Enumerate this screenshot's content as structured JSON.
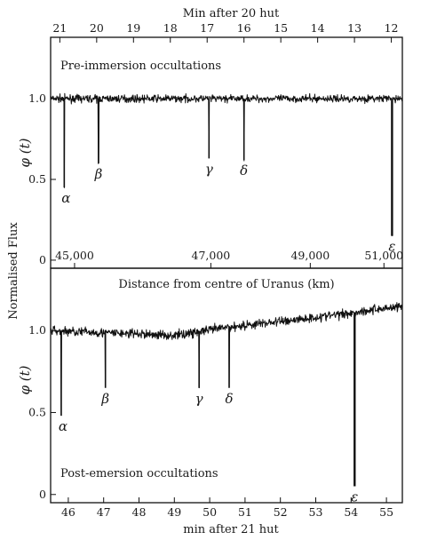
{
  "figure": {
    "top_axis_label": "Min after 20 hut",
    "bottom_axis_label": "min after 21 hut",
    "y_axis_label": "Normalised Flux",
    "middle_axis_label": "Distance from centre of Uranus (km)"
  },
  "chart_data": [
    {
      "type": "line",
      "panel": "top",
      "title": "Pre-immersion occultations",
      "ylabel": "φ (t)",
      "xlabel": "Min after 20 hut",
      "x_reversed": true,
      "xlim": [
        21.25,
        11.7
      ],
      "ylim": [
        -0.05,
        1.38
      ],
      "xticks": [
        {
          "value": 21,
          "label": "21"
        },
        {
          "value": 20,
          "label": "20"
        },
        {
          "value": 19,
          "label": "19"
        },
        {
          "value": 18,
          "label": "18"
        },
        {
          "value": 17,
          "label": "17"
        },
        {
          "value": 16,
          "label": "16"
        },
        {
          "value": 15,
          "label": "15"
        },
        {
          "value": 14,
          "label": "14"
        },
        {
          "value": 13,
          "label": "13"
        },
        {
          "value": 12,
          "label": "12"
        }
      ],
      "yticks": [
        {
          "value": 1.0,
          "label": "1.0"
        },
        {
          "value": 0.5,
          "label": "0.5"
        },
        {
          "value": 0,
          "label": "0"
        }
      ],
      "secondary_xaxis": {
        "label": "Distance from centre of Uranus (km)",
        "ticks": [
          {
            "at_minute": 20.6,
            "label": "45,000"
          },
          {
            "at_minute": 16.9,
            "label": "47,000"
          },
          {
            "at_minute": 14.2,
            "label": "49,000"
          },
          {
            "at_minute": 12.2,
            "label": "51,000"
          }
        ]
      },
      "baseline": 1.0,
      "noise": 0.022,
      "dips": [
        {
          "name": "α",
          "x": 20.88,
          "min": 0.45
        },
        {
          "name": "β",
          "x": 19.95,
          "min": 0.6
        },
        {
          "name": "γ",
          "x": 16.95,
          "min": 0.63
        },
        {
          "name": "δ",
          "x": 16.0,
          "min": 0.62
        },
        {
          "name": "ε",
          "x": 11.98,
          "min": 0.15
        }
      ],
      "dip_labels": [
        "α",
        "β",
        "γ",
        "δ",
        "ε"
      ]
    },
    {
      "type": "line",
      "panel": "bottom",
      "title": "Post-emersion occultations",
      "ylabel": "φ (t)",
      "xlabel": "min after 21 hut",
      "xlim": [
        45.5,
        55.45
      ],
      "ylim": [
        -0.05,
        1.38
      ],
      "xticks": [
        {
          "value": 46,
          "label": "46"
        },
        {
          "value": 47,
          "label": "47"
        },
        {
          "value": 48,
          "label": "48"
        },
        {
          "value": 49,
          "label": "49"
        },
        {
          "value": 50,
          "label": "50"
        },
        {
          "value": 51,
          "label": "51"
        },
        {
          "value": 52,
          "label": "52"
        },
        {
          "value": 53,
          "label": "53"
        },
        {
          "value": 54,
          "label": "54"
        },
        {
          "value": 55,
          "label": "55"
        }
      ],
      "yticks": [
        {
          "value": 1.0,
          "label": "1.0"
        },
        {
          "value": 0.5,
          "label": "0.5"
        },
        {
          "value": 0,
          "label": "0"
        }
      ],
      "baseline_trend": [
        [
          45.5,
          1.0
        ],
        [
          49.0,
          0.97
        ],
        [
          50.5,
          1.02
        ],
        [
          53.0,
          1.08
        ],
        [
          55.45,
          1.15
        ]
      ],
      "noise": 0.028,
      "dips": [
        {
          "name": "α",
          "x": 45.8,
          "min": 0.48
        },
        {
          "name": "β",
          "x": 47.05,
          "min": 0.65
        },
        {
          "name": "γ",
          "x": 49.7,
          "min": 0.65
        },
        {
          "name": "δ",
          "x": 50.55,
          "min": 0.65
        },
        {
          "name": "ε",
          "x": 54.1,
          "min": 0.05
        }
      ],
      "dip_labels": [
        "α",
        "β",
        "γ",
        "δ",
        "ε"
      ]
    }
  ]
}
